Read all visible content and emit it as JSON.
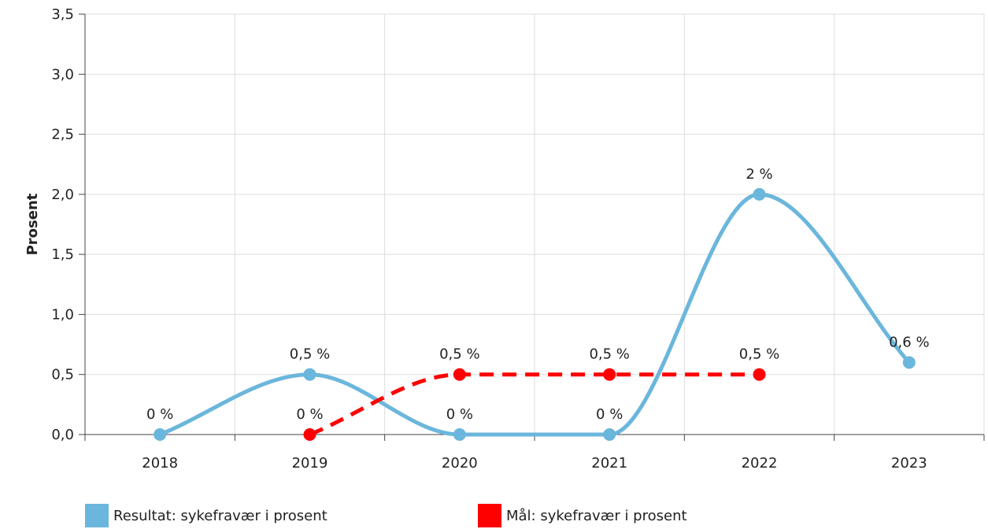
{
  "chart_data": {
    "type": "line",
    "ylabel": "Prosent",
    "xlabel": "",
    "categories": [
      "2018",
      "2019",
      "2020",
      "2021",
      "2022",
      "2023"
    ],
    "y_ticks": [
      "0,0",
      "0,5",
      "1,0",
      "1,5",
      "2,0",
      "2,5",
      "3,0",
      "3,5"
    ],
    "ylim": [
      0,
      3.5
    ],
    "grid": true,
    "legend_position": "bottom",
    "series": [
      {
        "name": "Resultat: sykefravær i prosent",
        "color": "#6bb6dc",
        "line_style": "solid",
        "points": [
          {
            "x": "2018",
            "y": 0,
            "label": "0 %"
          },
          {
            "x": "2019",
            "y": 0.5,
            "label": "0,5 %"
          },
          {
            "x": "2020",
            "y": 0,
            "label": "0 %"
          },
          {
            "x": "2021",
            "y": 0,
            "label": "0 %"
          },
          {
            "x": "2022",
            "y": 2,
            "label": "2 %"
          },
          {
            "x": "2023",
            "y": 0.6,
            "label": "0,6 %"
          }
        ]
      },
      {
        "name": "Mål: sykefravær i prosent",
        "color": "#ff0000",
        "line_style": "dashed",
        "points": [
          {
            "x": "2019",
            "y": 0,
            "label": "0 %"
          },
          {
            "x": "2020",
            "y": 0.5,
            "label": "0,5 %"
          },
          {
            "x": "2021",
            "y": 0.5,
            "label": "0,5 %"
          },
          {
            "x": "2022",
            "y": 0.5,
            "label": "0,5 %"
          }
        ]
      }
    ]
  }
}
